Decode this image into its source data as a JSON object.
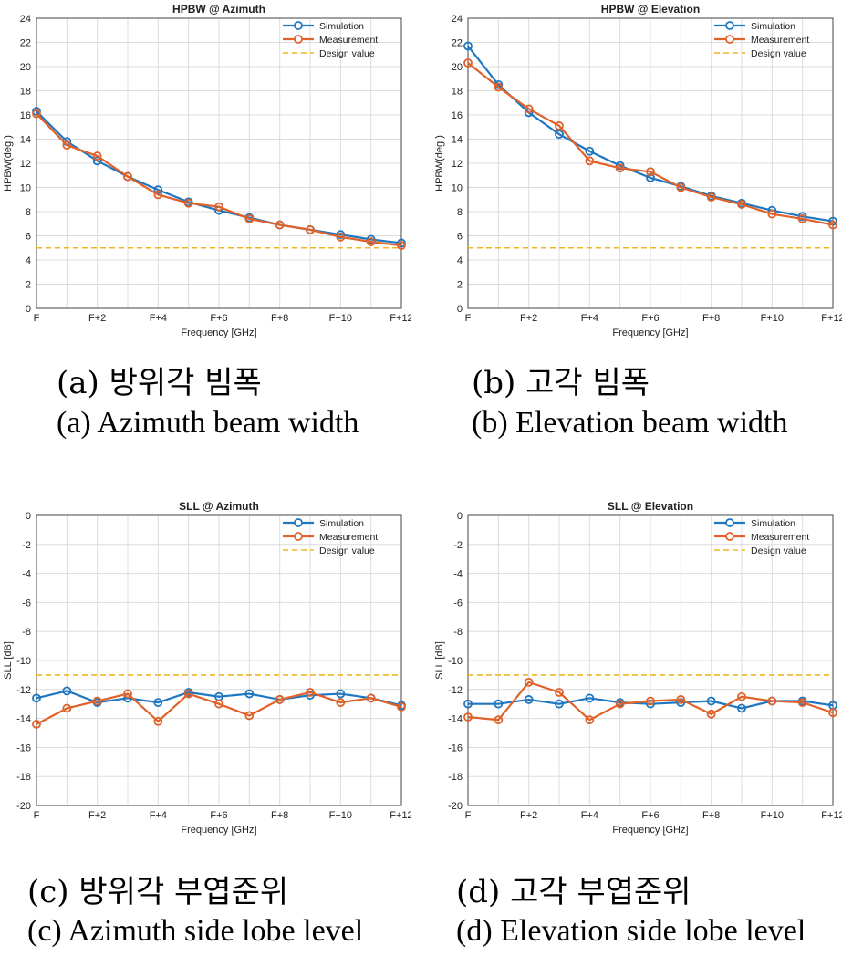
{
  "captions": {
    "a_ko": "(a) 방위각 빔폭",
    "a_en": "(a) Azimuth beam width",
    "b_ko": "(b) 고각 빔폭",
    "b_en": "(b) Elevation beam width",
    "c_ko": "(c) 방위각 부엽준위",
    "c_en": "(c) Azimuth side lobe level",
    "d_ko": "(d) 고각 부엽준위",
    "d_en": "(d) Elevation side lobe level"
  },
  "colors": {
    "simulation": "#1f77c0",
    "measurement": "#e0622a",
    "design": "#f2b623",
    "grid": "#dcdcdc"
  },
  "chart_data": [
    {
      "type": "line",
      "title": "HPBW @ Azimuth",
      "xlabel": "Frequency [GHz]",
      "ylabel": "HPBW(deg.)",
      "x": [
        0,
        1,
        2,
        3,
        4,
        5,
        6,
        7,
        8,
        9,
        10,
        11,
        12
      ],
      "xticks": [
        "F",
        "",
        "F+2",
        "",
        "F+4",
        "",
        "F+6",
        "",
        "F+8",
        "",
        "F+10",
        "",
        "F+12"
      ],
      "ylim": [
        0,
        24
      ],
      "yticks": [
        0,
        2,
        4,
        6,
        8,
        10,
        12,
        14,
        16,
        18,
        20,
        22,
        24
      ],
      "grid": true,
      "legend": "top-right",
      "series": [
        {
          "name": "Simulation",
          "values": [
            16.3,
            13.8,
            12.2,
            10.9,
            9.8,
            8.8,
            8.1,
            7.5,
            6.9,
            6.5,
            6.1,
            5.7,
            5.4
          ]
        },
        {
          "name": "Measurement",
          "values": [
            16.1,
            13.5,
            12.6,
            10.9,
            9.4,
            8.7,
            8.4,
            7.4,
            6.9,
            6.5,
            5.9,
            5.5,
            5.2
          ]
        },
        {
          "name": "Design value",
          "values": [
            5,
            5,
            5,
            5,
            5,
            5,
            5,
            5,
            5,
            5,
            5,
            5,
            5
          ]
        }
      ]
    },
    {
      "type": "line",
      "title": "HPBW @ Elevation",
      "xlabel": "Frequency [GHz]",
      "ylabel": "HPBW(deg.)",
      "x": [
        0,
        1,
        2,
        3,
        4,
        5,
        6,
        7,
        8,
        9,
        10,
        11,
        12
      ],
      "xticks": [
        "F",
        "",
        "F+2",
        "",
        "F+4",
        "",
        "F+6",
        "",
        "F+8",
        "",
        "F+10",
        "",
        "F+12"
      ],
      "ylim": [
        0,
        24
      ],
      "yticks": [
        0,
        2,
        4,
        6,
        8,
        10,
        12,
        14,
        16,
        18,
        20,
        22,
        24
      ],
      "grid": true,
      "legend": "top-right",
      "series": [
        {
          "name": "Simulation",
          "values": [
            21.7,
            18.5,
            16.2,
            14.4,
            13.0,
            11.8,
            10.8,
            10.1,
            9.3,
            8.7,
            8.1,
            7.6,
            7.2
          ]
        },
        {
          "name": "Measurement",
          "values": [
            20.3,
            18.3,
            16.5,
            15.1,
            12.2,
            11.6,
            11.3,
            10.0,
            9.2,
            8.6,
            7.8,
            7.4,
            6.9
          ]
        },
        {
          "name": "Design value",
          "values": [
            5,
            5,
            5,
            5,
            5,
            5,
            5,
            5,
            5,
            5,
            5,
            5,
            5
          ]
        }
      ]
    },
    {
      "type": "line",
      "title": "SLL @ Azimuth",
      "xlabel": "Frequency [GHz]",
      "ylabel": "SLL [dB]",
      "x": [
        0,
        1,
        2,
        3,
        4,
        5,
        6,
        7,
        8,
        9,
        10,
        11,
        12
      ],
      "xticks": [
        "F",
        "",
        "F+2",
        "",
        "F+4",
        "",
        "F+6",
        "",
        "F+8",
        "",
        "F+10",
        "",
        "F+12"
      ],
      "ylim": [
        -20,
        0
      ],
      "yticks": [
        -20,
        -18,
        -16,
        -14,
        -12,
        -10,
        -8,
        -6,
        -4,
        -2,
        0
      ],
      "grid": true,
      "legend": "top-right",
      "series": [
        {
          "name": "Simulation",
          "values": [
            -12.6,
            -12.1,
            -12.9,
            -12.6,
            -12.9,
            -12.2,
            -12.5,
            -12.3,
            -12.7,
            -12.4,
            -12.3,
            -12.6,
            -13.1
          ]
        },
        {
          "name": "Measurement",
          "values": [
            -14.4,
            -13.3,
            -12.8,
            -12.3,
            -14.2,
            -12.3,
            -13.0,
            -13.8,
            -12.7,
            -12.2,
            -12.9,
            -12.6,
            -13.2
          ]
        },
        {
          "name": "Design value",
          "values": [
            -11,
            -11,
            -11,
            -11,
            -11,
            -11,
            -11,
            -11,
            -11,
            -11,
            -11,
            -11,
            -11
          ]
        }
      ]
    },
    {
      "type": "line",
      "title": "SLL @ Elevation",
      "xlabel": "Frequency [GHz]",
      "ylabel": "SLL [dB]",
      "x": [
        0,
        1,
        2,
        3,
        4,
        5,
        6,
        7,
        8,
        9,
        10,
        11,
        12
      ],
      "xticks": [
        "F",
        "",
        "F+2",
        "",
        "F+4",
        "",
        "F+6",
        "",
        "F+8",
        "",
        "F+10",
        "",
        "F+12"
      ],
      "ylim": [
        -20,
        0
      ],
      "yticks": [
        -20,
        -18,
        -16,
        -14,
        -12,
        -10,
        -8,
        -6,
        -4,
        -2,
        0
      ],
      "grid": true,
      "legend": "top-right",
      "series": [
        {
          "name": "Simulation",
          "values": [
            -13.0,
            -13.0,
            -12.7,
            -13.0,
            -12.6,
            -12.9,
            -13.0,
            -12.9,
            -12.8,
            -13.3,
            -12.8,
            -12.8,
            -13.1
          ]
        },
        {
          "name": "Measurement",
          "values": [
            -13.9,
            -14.1,
            -11.5,
            -12.2,
            -14.1,
            -13.0,
            -12.8,
            -12.7,
            -13.7,
            -12.5,
            -12.8,
            -12.9,
            -13.6
          ]
        },
        {
          "name": "Design value",
          "values": [
            -11,
            -11,
            -11,
            -11,
            -11,
            -11,
            -11,
            -11,
            -11,
            -11,
            -11,
            -11,
            -11
          ]
        }
      ]
    }
  ]
}
